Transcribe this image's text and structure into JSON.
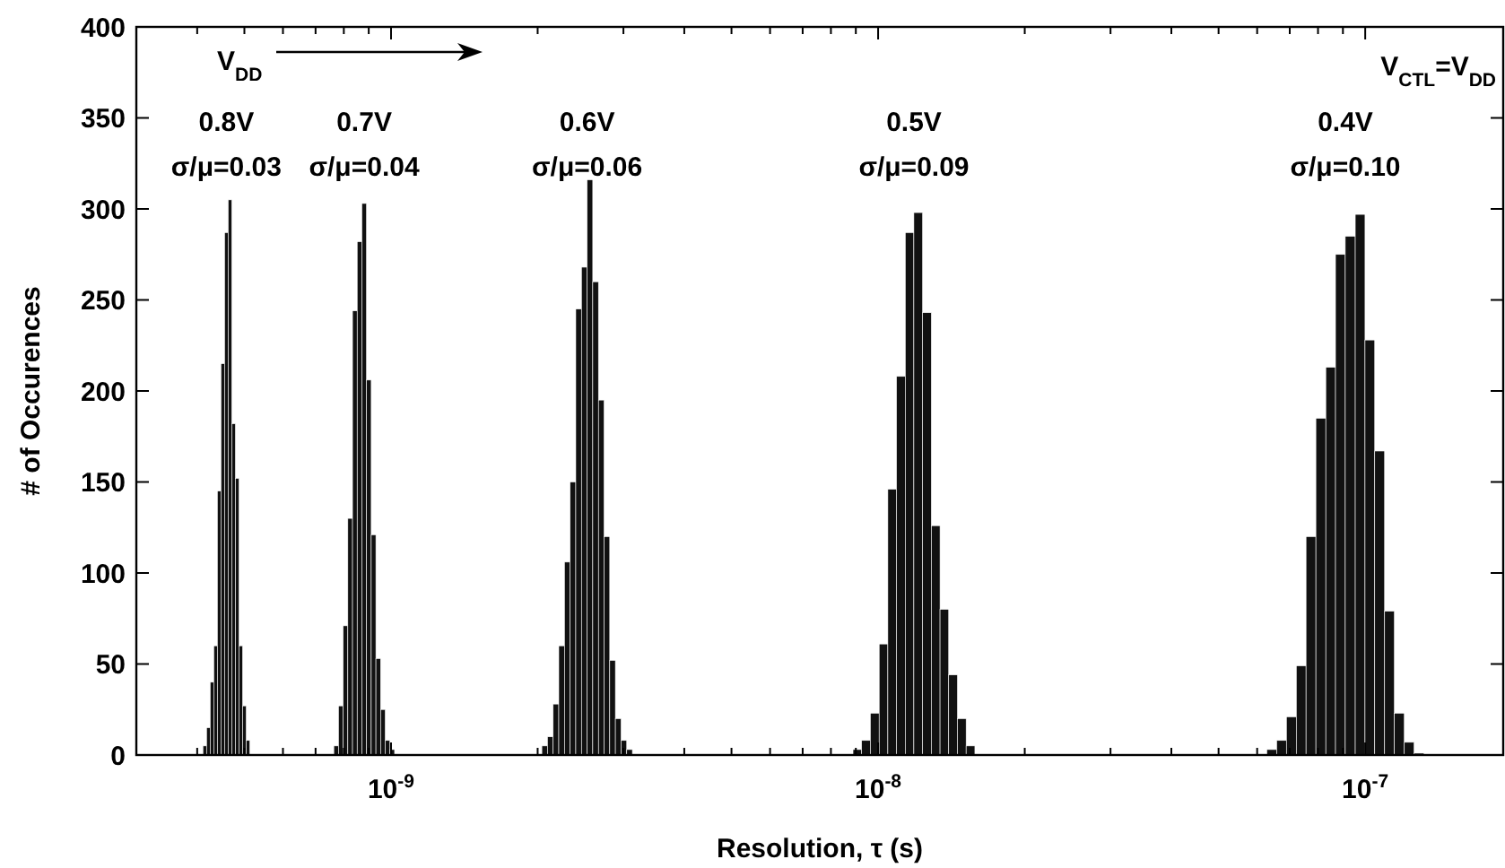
{
  "chart_data": {
    "type": "histogram",
    "xlabel": "Resolution, τ (s)",
    "ylabel": "# of Occurences",
    "log": "x",
    "grid": false,
    "color": "#111111",
    "xlim": [
      3e-10,
      1.92e-07
    ],
    "ylim": [
      0,
      400
    ],
    "xticks": [
      {
        "value": 4e-10,
        "label": null
      },
      {
        "value": 5e-10,
        "label": null
      },
      {
        "value": 6e-10,
        "label": null
      },
      {
        "value": 7e-10,
        "label": null
      },
      {
        "value": 8e-10,
        "label": null
      },
      {
        "value": 9e-10,
        "label": null
      },
      {
        "value": 1e-09,
        "label": "10$^{-9}$"
      },
      {
        "value": 2e-09,
        "label": null
      },
      {
        "value": 3e-09,
        "label": null
      },
      {
        "value": 4e-09,
        "label": null
      },
      {
        "value": 5e-09,
        "label": null
      },
      {
        "value": 6e-09,
        "label": null
      },
      {
        "value": 7e-09,
        "label": null
      },
      {
        "value": 8e-09,
        "label": null
      },
      {
        "value": 9e-09,
        "label": null
      },
      {
        "value": 1e-08,
        "label": "10$^{-8}$"
      },
      {
        "value": 2e-08,
        "label": null
      },
      {
        "value": 3e-08,
        "label": null
      },
      {
        "value": 4e-08,
        "label": null
      },
      {
        "value": 5e-08,
        "label": null
      },
      {
        "value": 6e-08,
        "label": null
      },
      {
        "value": 7e-08,
        "label": null
      },
      {
        "value": 8e-08,
        "label": null
      },
      {
        "value": 9e-08,
        "label": null
      },
      {
        "value": 1e-07,
        "label": "10$^{-7}$"
      }
    ],
    "yticks": [
      0,
      50,
      100,
      150,
      200,
      250,
      300,
      350,
      400
    ],
    "bins": [
      4.11e-10,
      4.181e-10,
      4.253e-10,
      4.326e-10,
      4.4e-10,
      4.476e-10,
      4.553e-10,
      4.631e-10,
      4.711e-10,
      4.792e-10,
      4.874e-10,
      4.958e-10,
      5.044e-10,
      5.13e-10,
      7.63e-10,
      7.801e-10,
      7.975e-10,
      8.153e-10,
      8.336e-10,
      8.522e-10,
      8.712e-10,
      8.907e-10,
      9.106e-10,
      9.31e-10,
      9.518e-10,
      9.73e-10,
      9.948e-10,
      1.017e-09,
      2.04e-09,
      2.095e-09,
      2.152e-09,
      2.21e-09,
      2.27e-09,
      2.332e-09,
      2.395e-09,
      2.46e-09,
      2.527e-09,
      2.595e-09,
      2.666e-09,
      2.738e-09,
      2.812e-09,
      2.888e-09,
      2.967e-09,
      3.047e-09,
      3.13e-09,
      8.88e-09,
      9.25e-09,
      9.64e-09,
      1.005e-08,
      1.047e-08,
      1.091e-08,
      1.137e-08,
      1.184e-08,
      1.234e-08,
      1.286e-08,
      1.34e-08,
      1.396e-08,
      1.455e-08,
      1.516e-08,
      1.58e-08,
      6.28e-08,
      6.58e-08,
      6.89e-08,
      7.22e-08,
      7.56e-08,
      7.92e-08,
      8.3e-08,
      8.69e-08,
      9.1e-08,
      9.54e-08,
      9.99e-08,
      1.046e-07,
      1.096e-07,
      1.148e-07,
      1.203e-07,
      1.26e-07,
      1.32e-07
    ],
    "values": [
      5,
      15,
      40,
      60,
      145,
      215,
      287,
      305,
      182,
      152,
      60,
      27,
      8,
      0,
      5,
      27,
      71,
      130,
      244,
      282,
      303,
      206,
      121,
      53,
      25,
      8,
      3,
      0,
      5,
      10,
      28,
      60,
      106,
      150,
      245,
      268,
      316,
      260,
      195,
      120,
      52,
      20,
      8,
      3,
      0,
      3,
      8,
      23,
      61,
      146,
      208,
      287,
      298,
      243,
      126,
      80,
      44,
      20,
      5,
      0,
      3,
      8,
      21,
      49,
      120,
      185,
      213,
      275,
      285,
      297,
      228,
      167,
      79,
      23,
      7,
      1
    ],
    "annotations": [
      "V$_{DD}$",
      "0.8V",
      "σ/μ=0.03",
      "0.7V",
      "σ/μ=0.04",
      "0.6V",
      "σ/μ=0.06",
      "0.5V",
      "σ/μ=0.09",
      "0.4V",
      "σ/μ=0.10",
      "V$_{CTL}$=V$_{DD}$"
    ]
  }
}
